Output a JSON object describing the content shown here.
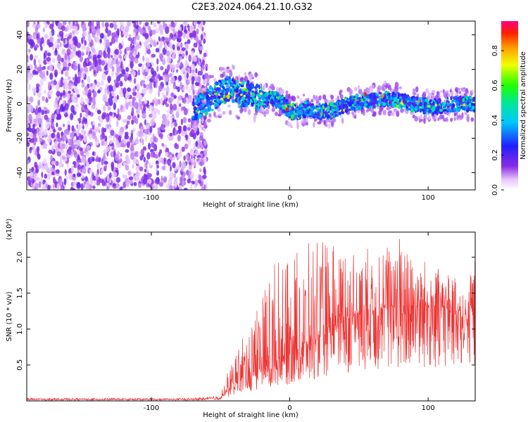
{
  "title": "C2E3.2024.064.21.10.G32",
  "chart_data": [
    {
      "type": "heatmap",
      "xlabel": "Height of straight line (km)",
      "ylabel": "Frequency (Hz)",
      "xlim": [
        -190,
        134
      ],
      "ylim": [
        -50,
        48
      ],
      "xticks": [
        -100,
        0,
        100
      ],
      "yticks": [
        -40,
        -20,
        0,
        20,
        40
      ],
      "grid": false,
      "noise_region_x": [
        -190,
        -60
      ],
      "signal_ridge": [
        {
          "x": -70,
          "y": -3
        },
        {
          "x": -62,
          "y": 0
        },
        {
          "x": -55,
          "y": 4
        },
        {
          "x": -48,
          "y": 8
        },
        {
          "x": -42,
          "y": 9
        },
        {
          "x": -36,
          "y": 5
        },
        {
          "x": -30,
          "y": 6
        },
        {
          "x": -24,
          "y": 4
        },
        {
          "x": -18,
          "y": 2
        },
        {
          "x": -12,
          "y": 3
        },
        {
          "x": -6,
          "y": 1
        },
        {
          "x": 0,
          "y": -4
        },
        {
          "x": 6,
          "y": -5
        },
        {
          "x": 12,
          "y": -3
        },
        {
          "x": 18,
          "y": -4
        },
        {
          "x": 24,
          "y": -5
        },
        {
          "x": 30,
          "y": -4
        },
        {
          "x": 36,
          "y": -2
        },
        {
          "x": 42,
          "y": 0
        },
        {
          "x": 50,
          "y": 1
        },
        {
          "x": 58,
          "y": 2
        },
        {
          "x": 66,
          "y": 3
        },
        {
          "x": 74,
          "y": 3
        },
        {
          "x": 80,
          "y": 2
        },
        {
          "x": 88,
          "y": 0
        },
        {
          "x": 96,
          "y": -1
        },
        {
          "x": 104,
          "y": -2
        },
        {
          "x": 112,
          "y": -1
        },
        {
          "x": 120,
          "y": 0
        },
        {
          "x": 128,
          "y": 0
        },
        {
          "x": 134,
          "y": -1
        }
      ],
      "colorbar": {
        "label": "Normalized spectral amplitude",
        "ticks": [
          "0.0",
          "0.2",
          "0.4",
          "0.6",
          "0.8"
        ],
        "range": [
          0,
          0.97
        ]
      }
    },
    {
      "type": "line",
      "xlabel": "Height of straight line (km)",
      "ylabel": "SNR (10 * v/v)",
      "multiplier": "(x10⁴)",
      "xlim": [
        -190,
        134
      ],
      "ylim": [
        0,
        2.35
      ],
      "xticks": [
        -100,
        0,
        100
      ],
      "yticks": [
        "0.5",
        "1.0",
        "1.5",
        "2.0"
      ],
      "color": "#ee3333",
      "envelope": {
        "x": [
          -190,
          -70,
          -50,
          -40,
          -30,
          -20,
          -10,
          0,
          10,
          20,
          30,
          40,
          50,
          60,
          70,
          80,
          90,
          100,
          110,
          120,
          127,
          134
        ],
        "y_base": [
          0.02,
          0.02,
          0.04,
          0.25,
          0.35,
          0.45,
          0.55,
          0.65,
          0.75,
          0.9,
          1.0,
          1.1,
          1.2,
          1.25,
          1.3,
          1.3,
          1.3,
          1.3,
          1.3,
          1.25,
          1.1,
          1.3
        ],
        "y_peak": [
          0.04,
          0.04,
          0.08,
          0.7,
          1.0,
          1.6,
          2.0,
          1.9,
          2.25,
          2.2,
          2.25,
          2.2,
          2.0,
          2.2,
          2.2,
          2.35,
          2.0,
          2.0,
          1.8,
          1.7,
          1.6,
          2.0
        ]
      }
    }
  ]
}
